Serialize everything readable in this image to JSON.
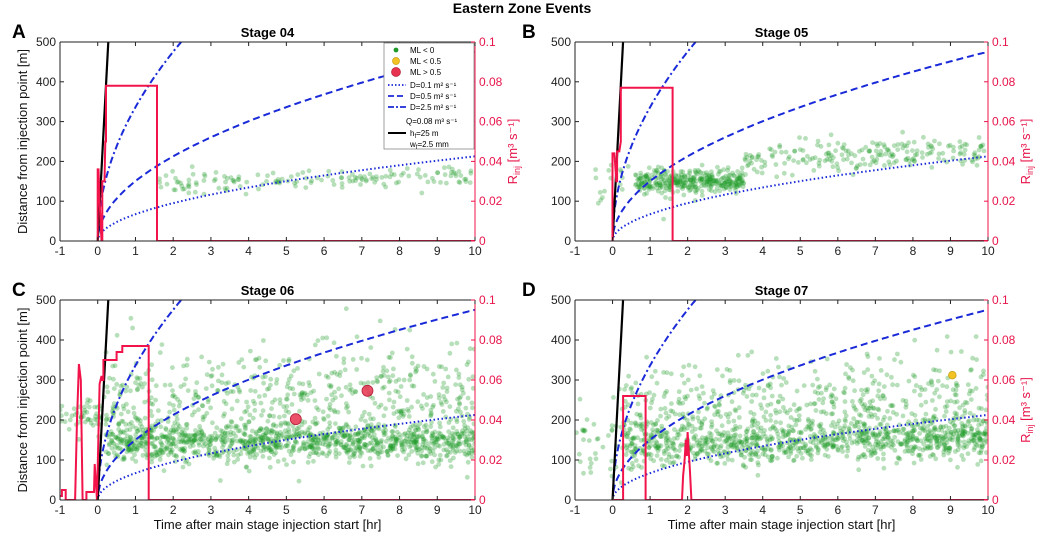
{
  "figure_title": "Eastern Zone Events",
  "colors": {
    "events_ml_lt0": "#1e9a28",
    "events_ml_lt05": "#f2c322",
    "events_ml_gt05": "#e8334f",
    "injection_rate": "#f2134a",
    "diffusion": "#1a2ad8",
    "hydraulic_fracture": "#000000"
  },
  "legend": {
    "items": [
      "ML < 0",
      "ML < 0.5",
      "ML > 0.5",
      "D=0.1 m² s⁻¹",
      "D=0.5 m² s⁻¹",
      "D=2.5 m² s⁻¹",
      "Q=0.08 m³ s⁻¹",
      "h_f=25 m",
      "w_f=2.5 mm"
    ]
  },
  "chart_data": [
    {
      "type": "scatter",
      "panel_label": "A",
      "title": "Stage 04",
      "xlabel": "",
      "ylabel": "Distance from injection point [m]",
      "y2label": "R_inj [m³ s⁻¹]",
      "xlim": [
        -1,
        10
      ],
      "ylim": [
        0,
        500
      ],
      "y2lim": [
        0,
        0.1
      ],
      "xticks": [
        -1,
        0,
        1,
        2,
        3,
        4,
        5,
        6,
        7,
        8,
        9,
        10
      ],
      "yticks": [
        0,
        100,
        200,
        300,
        400,
        500
      ],
      "y2ticks": [
        0,
        0.02,
        0.04,
        0.06,
        0.08,
        0.1
      ],
      "injection_rate": {
        "t": [
          0.0,
          0.0,
          0.02,
          0.05,
          0.1,
          0.12,
          0.12,
          0.18,
          0.2,
          0.22,
          0.22,
          1.57,
          1.57,
          10
        ],
        "q": [
          0,
          0.036,
          0.036,
          0.02,
          0.0,
          0.0,
          0.03,
          0.03,
          0.05,
          0.05,
          0.078,
          0.078,
          0,
          0
        ]
      },
      "event_clusters": [
        {
          "t_range": [
            1.6,
            9.9
          ],
          "r_center": 145,
          "r_spread": 12,
          "trend": 2.5,
          "count": 150
        }
      ],
      "large_events": []
    },
    {
      "type": "scatter",
      "panel_label": "B",
      "title": "Stage 05",
      "xlabel": "",
      "ylabel": "",
      "y2label": "R_inj [m³ s⁻¹]",
      "xlim": [
        -1,
        10
      ],
      "ylim": [
        0,
        500
      ],
      "y2lim": [
        0,
        0.1
      ],
      "xticks": [
        -1,
        0,
        1,
        2,
        3,
        4,
        5,
        6,
        7,
        8,
        9,
        10
      ],
      "yticks": [
        0,
        100,
        200,
        300,
        400,
        500
      ],
      "y2ticks": [
        0,
        0.02,
        0.04,
        0.06,
        0.08,
        0.1
      ],
      "injection_rate": {
        "t": [
          0.0,
          0.0,
          0.05,
          0.1,
          0.12,
          0.12,
          0.18,
          0.22,
          0.22,
          1.6,
          1.6,
          10
        ],
        "q": [
          0,
          0.044,
          0.044,
          0.03,
          0.03,
          0.045,
          0.045,
          0.05,
          0.077,
          0.077,
          0,
          0
        ]
      },
      "event_clusters": [
        {
          "t_range": [
            0.6,
            3.5
          ],
          "r_center": 150,
          "r_spread": 16,
          "trend": 0,
          "count": 340
        },
        {
          "t_range": [
            3.5,
            10.0
          ],
          "r_center": 205,
          "r_spread": 20,
          "trend": 3.5,
          "count": 210
        },
        {
          "t_range": [
            -0.5,
            1.6
          ],
          "r_center": 150,
          "r_spread": 30,
          "trend": 0,
          "count": 25
        }
      ],
      "large_events": []
    },
    {
      "type": "scatter",
      "panel_label": "C",
      "title": "Stage 06",
      "xlabel": "Time after main stage injection start [hr]",
      "ylabel": "Distance from injection point [m]",
      "y2label": "",
      "xlim": [
        -1,
        10
      ],
      "ylim": [
        0,
        500
      ],
      "y2lim": [
        0,
        0.1
      ],
      "xticks": [
        -1,
        0,
        1,
        2,
        3,
        4,
        5,
        6,
        7,
        8,
        9,
        10
      ],
      "yticks": [
        0,
        100,
        200,
        300,
        400,
        500
      ],
      "y2ticks": [
        0,
        0.02,
        0.04,
        0.06,
        0.08,
        0.1
      ],
      "injection_rate": {
        "t": [
          -1.0,
          -0.95,
          -0.95,
          -0.85,
          -0.85,
          -0.6,
          -0.55,
          -0.5,
          -0.45,
          -0.4,
          -0.3,
          -0.3,
          -0.1,
          -0.08,
          -0.02,
          0.0,
          0.05,
          0.1,
          0.12,
          0.15,
          0.15,
          0.5,
          0.5,
          0.65,
          0.65,
          1.35,
          1.35,
          10
        ],
        "q": [
          0.002,
          0.002,
          0.005,
          0.005,
          0.0,
          0.0,
          0.04,
          0.068,
          0.06,
          0.0,
          0.0,
          0.004,
          0.004,
          0.018,
          0.0,
          0.016,
          0.058,
          0.062,
          0.06,
          0.06,
          0.07,
          0.07,
          0.074,
          0.074,
          0.077,
          0.077,
          0,
          0
        ]
      },
      "event_clusters": [
        {
          "t_range": [
            0.2,
            10.0
          ],
          "r_center": 145,
          "r_spread": 22,
          "trend": 0,
          "count": 950
        },
        {
          "t_range": [
            0.2,
            10.0
          ],
          "r_center": 240,
          "r_spread": 75,
          "trend": 0,
          "count": 650
        },
        {
          "t_range": [
            -1.0,
            0.2
          ],
          "r_center": 210,
          "r_spread": 22,
          "trend": 0,
          "count": 50
        }
      ],
      "large_events": [
        {
          "t": 5.25,
          "r": 202,
          "class": "ML > 0.5"
        },
        {
          "t": 7.15,
          "r": 273,
          "class": "ML > 0.5"
        }
      ]
    },
    {
      "type": "scatter",
      "panel_label": "D",
      "title": "Stage 07",
      "xlabel": "Time after main stage injection start [hr]",
      "ylabel": "",
      "y2label": "R_inj [m³ s⁻¹]",
      "xlim": [
        -1,
        10
      ],
      "ylim": [
        0,
        500
      ],
      "y2lim": [
        0,
        0.1
      ],
      "xticks": [
        -1,
        0,
        1,
        2,
        3,
        4,
        5,
        6,
        7,
        8,
        9,
        10
      ],
      "yticks": [
        0,
        100,
        200,
        300,
        400,
        500
      ],
      "y2ticks": [
        0,
        0.02,
        0.04,
        0.06,
        0.08,
        0.1
      ],
      "injection_rate": {
        "t": [
          0.0,
          0.28,
          0.28,
          0.88,
          0.88,
          1.85,
          1.88,
          1.92,
          1.95,
          1.98,
          2.0,
          2.03,
          2.06,
          2.1,
          10
        ],
        "q": [
          0,
          0,
          0.052,
          0.052,
          0,
          0,
          0.012,
          0.02,
          0.03,
          0.022,
          0.034,
          0.024,
          0.015,
          0,
          0
        ]
      },
      "event_clusters": [
        {
          "t_range": [
            0.3,
            10.0
          ],
          "r_center": 135,
          "r_spread": 24,
          "trend": 2,
          "count": 850
        },
        {
          "t_range": [
            0.3,
            10.0
          ],
          "r_center": 215,
          "r_spread": 60,
          "trend": 3,
          "count": 550
        },
        {
          "t_range": [
            -1.0,
            0.3
          ],
          "r_center": 140,
          "r_spread": 60,
          "trend": 0,
          "count": 40
        }
      ],
      "large_events": [
        {
          "t": 9.05,
          "r": 312,
          "class": "ML < 0.5"
        }
      ]
    }
  ]
}
